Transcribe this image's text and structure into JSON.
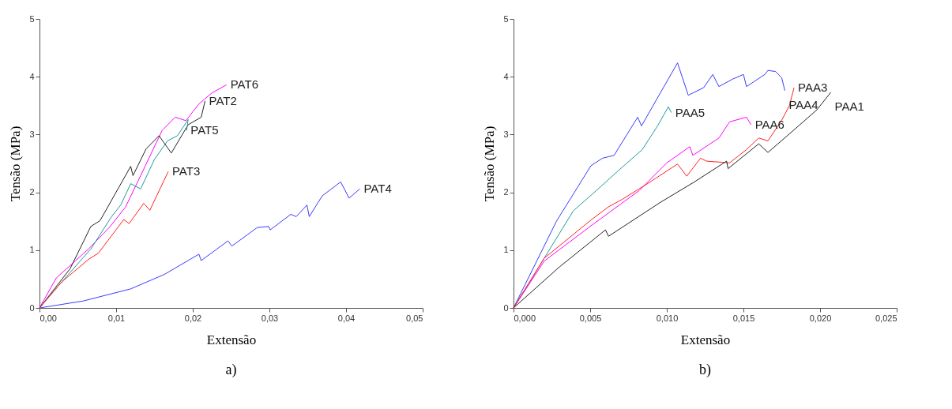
{
  "chart_data": [
    {
      "type": "line",
      "xlabel": "Extensão",
      "ylabel": "Tensão (MPa)",
      "annotations": [
        "a)"
      ],
      "xlim": [
        0,
        0.05
      ],
      "ylim": [
        0,
        5
      ],
      "xticks": [
        {
          "value": 0,
          "label": "0,00"
        },
        {
          "value": 0.01,
          "label": "0,01"
        },
        {
          "value": 0.02,
          "label": "0,02"
        },
        {
          "value": 0.03,
          "label": "0,03"
        },
        {
          "value": 0.04,
          "label": "0,04"
        },
        {
          "value": 0.05,
          "label": "0,05"
        }
      ],
      "yticks": [
        0,
        1,
        2,
        3,
        4,
        5
      ],
      "grid": false,
      "legend": false,
      "series": [
        {
          "name": "PAT4",
          "color": "#3a3aff",
          "x": [
            0,
            0.0057,
            0.0119,
            0.0163,
            0.0208,
            0.0211,
            0.0246,
            0.0251,
            0.0284,
            0.0299,
            0.0301,
            0.0328,
            0.0335,
            0.0349,
            0.0352,
            0.0369,
            0.0393,
            0.0404,
            0.0418
          ],
          "values": [
            0,
            0.12,
            0.33,
            0.58,
            0.93,
            0.82,
            1.16,
            1.07,
            1.39,
            1.41,
            1.35,
            1.62,
            1.58,
            1.78,
            1.58,
            1.94,
            2.18,
            1.9,
            2.06
          ]
        },
        {
          "name": "PAT6",
          "color": "#ff00ff",
          "x": [
            0,
            0.0022,
            0.0064,
            0.0091,
            0.0112,
            0.0132,
            0.016,
            0.0177,
            0.0191,
            0.0208,
            0.0225,
            0.0244
          ],
          "values": [
            0,
            0.52,
            1.02,
            1.39,
            1.74,
            2.29,
            3.07,
            3.3,
            3.24,
            3.53,
            3.72,
            3.86
          ]
        },
        {
          "name": "PAT2",
          "color": "#222222",
          "x": [
            0,
            0.004,
            0.0067,
            0.0079,
            0.0119,
            0.0122,
            0.0139,
            0.0156,
            0.0172,
            0.0194,
            0.0211,
            0.0216
          ],
          "values": [
            0,
            0.68,
            1.41,
            1.51,
            2.45,
            2.29,
            2.75,
            2.98,
            2.68,
            3.17,
            3.3,
            3.58
          ]
        },
        {
          "name": "PAT5",
          "color": "#1f9a9a",
          "x": [
            0,
            0.0029,
            0.0067,
            0.0094,
            0.0106,
            0.0119,
            0.0132,
            0.015,
            0.0167,
            0.018,
            0.0194,
            0.0192
          ],
          "values": [
            0,
            0.45,
            1.02,
            1.58,
            1.78,
            2.15,
            2.06,
            2.57,
            2.89,
            2.98,
            3.26,
            3.07
          ]
        },
        {
          "name": "PAT3",
          "color": "#ff2020",
          "x": [
            0,
            0.0029,
            0.0064,
            0.0077,
            0.011,
            0.0117,
            0.0136,
            0.0144,
            0.0168
          ],
          "values": [
            0,
            0.45,
            0.84,
            0.95,
            1.53,
            1.46,
            1.81,
            1.69,
            2.36
          ]
        }
      ]
    },
    {
      "type": "line",
      "xlabel": "Extensão",
      "ylabel": "Tensão (MPa)",
      "annotations": [
        "b)"
      ],
      "xlim": [
        0,
        0.025
      ],
      "ylim": [
        0,
        5
      ],
      "xticks": [
        {
          "value": 0,
          "label": "0,000"
        },
        {
          "value": 0.005,
          "label": "0,005"
        },
        {
          "value": 0.01,
          "label": "0,010"
        },
        {
          "value": 0.015,
          "label": "0,015"
        },
        {
          "value": 0.02,
          "label": "0,020"
        },
        {
          "value": 0.025,
          "label": "0,025"
        }
      ],
      "yticks": [
        0,
        1,
        2,
        3,
        4,
        5
      ],
      "grid": false,
      "legend": false,
      "series": [
        {
          "name": "PAA4",
          "color": "#3a3aff",
          "x": [
            0,
            0.0028,
            0.00505,
            0.0058,
            0.00656,
            0.0081,
            0.00835,
            0.0107,
            0.0114,
            0.0124,
            0.013,
            0.0134,
            0.0143,
            0.015,
            0.0152,
            0.0164,
            0.0166,
            0.0171,
            0.0175,
            0.0177
          ],
          "values": [
            0,
            1.5,
            2.46,
            2.59,
            2.64,
            3.3,
            3.15,
            4.24,
            3.68,
            3.81,
            4.04,
            3.83,
            3.96,
            4.04,
            3.83,
            4.04,
            4.11,
            4.09,
            3.98,
            3.76
          ]
        },
        {
          "name": "PAA5",
          "color": "#1f9a9a",
          "x": [
            0,
            0.002,
            0.0039,
            0.0054,
            0.0069,
            0.0084,
            0.0094,
            0.0101,
            0.0103
          ],
          "values": [
            0,
            0.86,
            1.68,
            2.03,
            2.39,
            2.74,
            3.15,
            3.48,
            3.38
          ]
        },
        {
          "name": "PAA6",
          "color": "#ff00ff",
          "x": [
            0,
            0.002,
            0.00505,
            0.0069,
            0.0082,
            0.01,
            0.0115,
            0.0117,
            0.0134,
            0.0141,
            0.0152,
            0.0155
          ],
          "values": [
            0,
            0.81,
            1.42,
            1.78,
            2.03,
            2.51,
            2.79,
            2.64,
            2.94,
            3.22,
            3.3,
            3.17
          ]
        },
        {
          "name": "PAA3",
          "color": "#ff2020",
          "x": [
            0,
            0.002,
            0.00505,
            0.0062,
            0.0071,
            0.0088,
            0.0107,
            0.0113,
            0.0122,
            0.0126,
            0.0141,
            0.0152,
            0.016,
            0.0166,
            0.0175,
            0.018,
            0.0183
          ],
          "values": [
            0,
            0.86,
            1.52,
            1.75,
            1.88,
            2.16,
            2.49,
            2.28,
            2.59,
            2.54,
            2.51,
            2.74,
            2.94,
            2.89,
            3.25,
            3.5,
            3.81
          ]
        },
        {
          "name": "PAA1",
          "color": "#222222",
          "x": [
            0,
            0.003,
            0.006,
            0.0062,
            0.0096,
            0.0118,
            0.0139,
            0.014,
            0.016,
            0.0166,
            0.0186,
            0.0198,
            0.0207
          ],
          "values": [
            0,
            0.71,
            1.35,
            1.24,
            1.83,
            2.18,
            2.54,
            2.41,
            2.84,
            2.69,
            3.15,
            3.43,
            3.73
          ]
        }
      ]
    }
  ]
}
